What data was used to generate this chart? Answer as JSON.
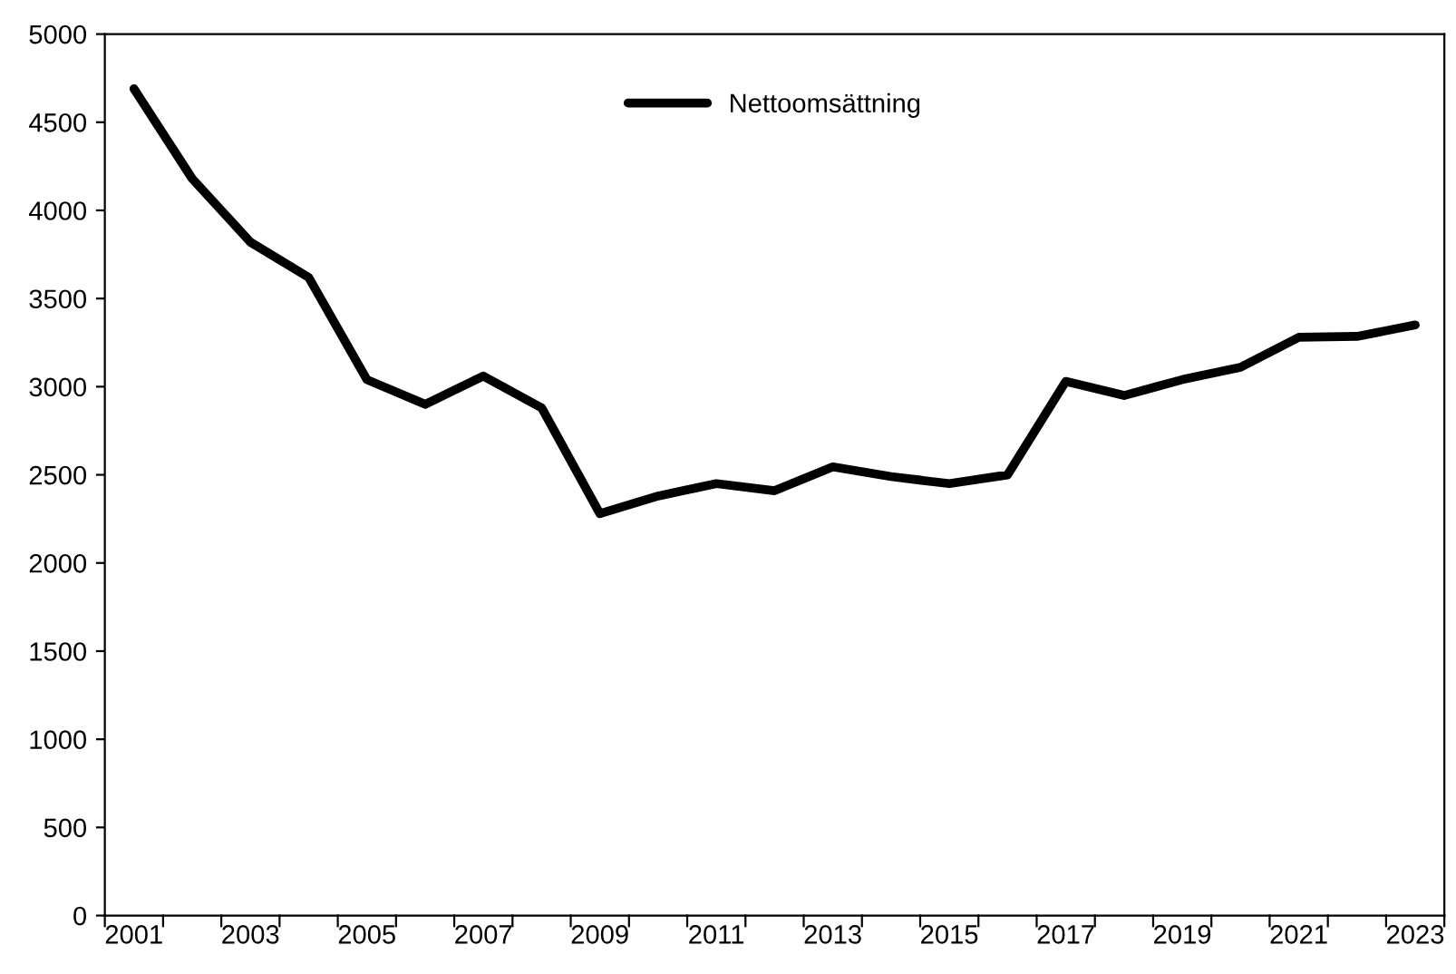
{
  "chart_data": {
    "type": "line",
    "categories": [
      "2001",
      null,
      "2003",
      null,
      "2005",
      null,
      "2007",
      null,
      "2009",
      null,
      "2011",
      null,
      "2013",
      null,
      "2015",
      null,
      "2017",
      null,
      "2019",
      null,
      "2021",
      null,
      "2023"
    ],
    "series": [
      {
        "name": "Nettoomsättning",
        "color": "#000000",
        "values": [
          4690,
          4180,
          3820,
          3620,
          3040,
          2900,
          3060,
          2880,
          2280,
          2380,
          2450,
          2410,
          2545,
          2490,
          2450,
          2500,
          3030,
          2950,
          3040,
          3110,
          3280,
          3285,
          3350
        ]
      }
    ],
    "ylim": [
      0,
      5000
    ],
    "yticks": [
      0,
      500,
      1000,
      1500,
      2000,
      2500,
      3000,
      3500,
      4000,
      4500,
      5000
    ],
    "grid": false,
    "legend": "top",
    "marker": "none",
    "line_style": "solid"
  }
}
